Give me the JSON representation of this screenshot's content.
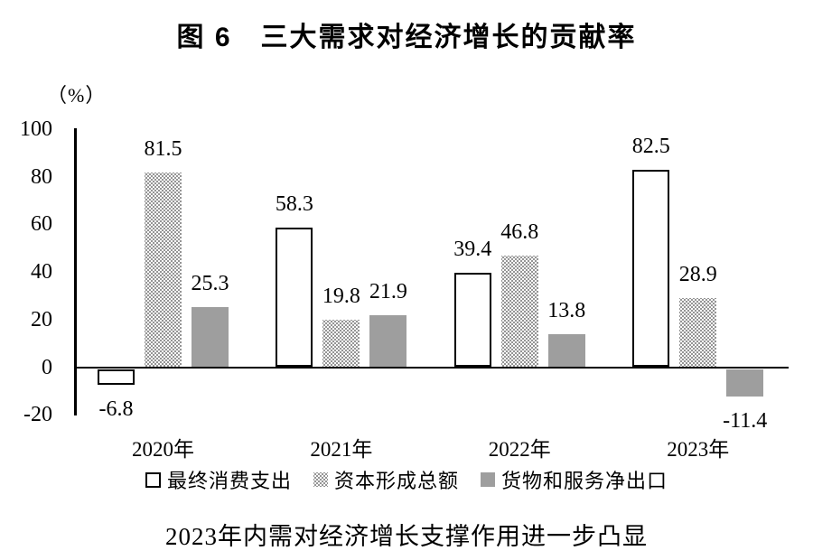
{
  "title": "图 6　三大需求对经济增长的贡献率",
  "caption": "2023年内需对经济增长支撑作用进一步凸显",
  "chart_data": {
    "type": "bar",
    "unit_label": "（%）",
    "categories": [
      "2020年",
      "2021年",
      "2022年",
      "2023年"
    ],
    "series": [
      {
        "name": "最终消费支出",
        "style": "outline",
        "values": [
          -6.8,
          58.3,
          39.4,
          82.5
        ]
      },
      {
        "name": "资本形成总额",
        "style": "dotted",
        "values": [
          81.5,
          19.8,
          46.8,
          28.9
        ]
      },
      {
        "name": "货物和服务净出口",
        "style": "solid",
        "values": [
          25.3,
          21.9,
          13.8,
          -11.4
        ]
      }
    ],
    "y_ticks": [
      100,
      80,
      60,
      40,
      20,
      0,
      -20
    ],
    "ylim": [
      -20,
      100
    ],
    "grid": false,
    "legend_position": "bottom",
    "colors": {
      "solid_bar": "#9e9e9e",
      "dot_bar": "#8f8f8f",
      "axis": "#000000",
      "text": "#000000"
    }
  }
}
